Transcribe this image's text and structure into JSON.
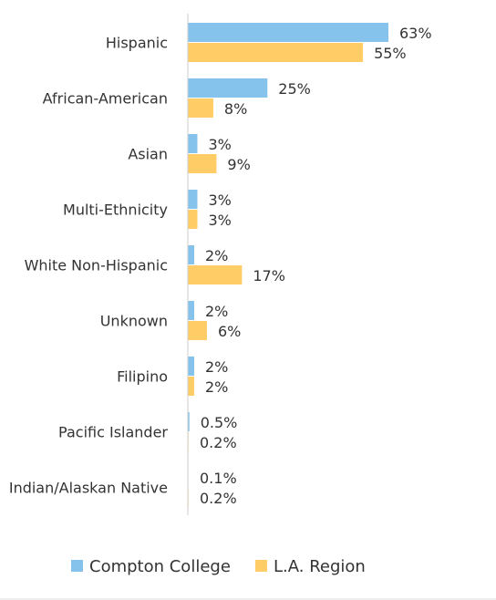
{
  "colors": {
    "compton": "#85C3EC",
    "la": "#FFCC66",
    "axis": "#cccccc",
    "text": "#333333"
  },
  "chart_data": {
    "type": "bar",
    "orientation": "horizontal",
    "categories": [
      "Hispanic",
      "African-American",
      "Asian",
      "Multi-Ethnicity",
      "White Non-Hispanic",
      "Unknown",
      "Filipino",
      "Pacific Islander",
      "Indian/Alaskan Native"
    ],
    "series": [
      {
        "name": "Compton College",
        "values": [
          63,
          25,
          3,
          3,
          2,
          2,
          2,
          0.5,
          0.1
        ],
        "labels": [
          "63%",
          "25%",
          "3%",
          "3%",
          "2%",
          "2%",
          "2%",
          "0.5%",
          "0.1%"
        ]
      },
      {
        "name": "L.A. Region",
        "values": [
          55,
          8,
          9,
          3,
          17,
          6,
          2,
          0.2,
          0.2
        ],
        "labels": [
          "55%",
          "8%",
          "9%",
          "3%",
          "17%",
          "6%",
          "2%",
          "0.2%",
          "0.2%"
        ]
      }
    ],
    "xlim": [
      0,
      63
    ],
    "grid": false,
    "legend_position": "bottom"
  }
}
